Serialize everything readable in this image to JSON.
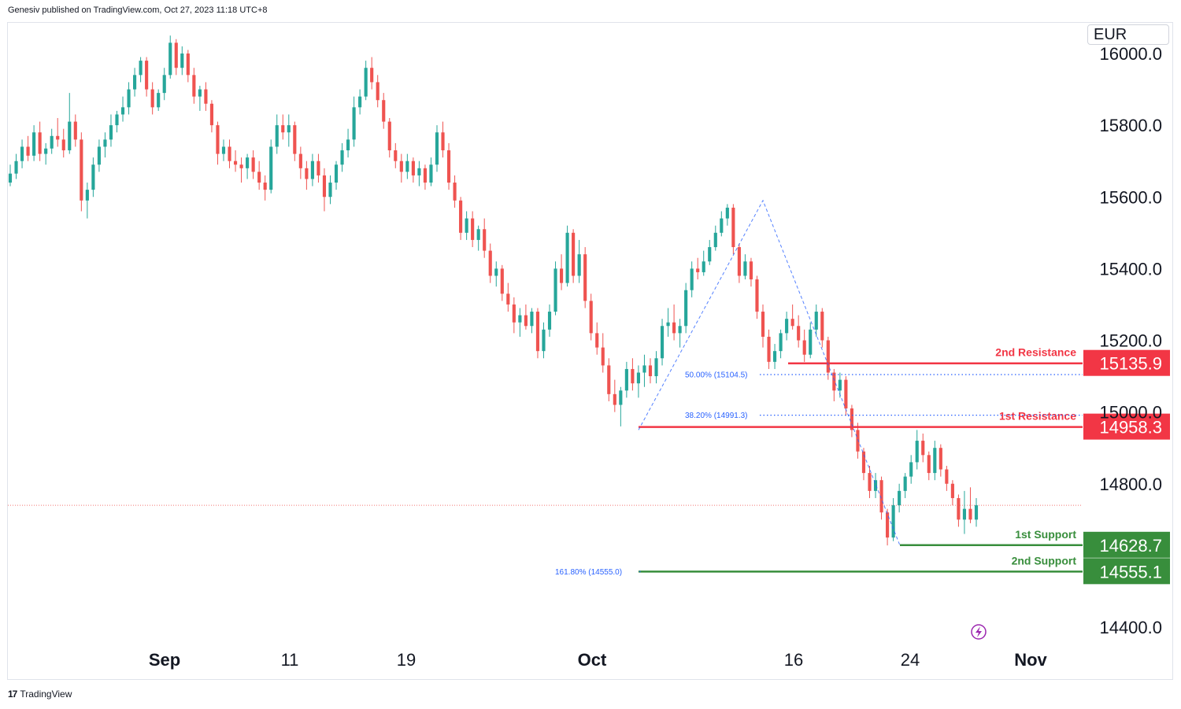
{
  "header": {
    "attribution": "Genesiv published on TradingView.com, Oct 27, 2023 11:18 UTC+8"
  },
  "currency": "EUR",
  "footer": {
    "brand": "TradingView",
    "logo_glyph": "17"
  },
  "colors": {
    "up": "#26a69a",
    "down": "#ef5350",
    "resistance": "#f23645",
    "support": "#388e3c",
    "fib": "#2962ff",
    "axis_text": "#131722"
  },
  "chart_data": {
    "type": "candlestick",
    "y_axis": {
      "ticks": [
        "16000.0",
        "15800.0",
        "15600.0",
        "15400.0",
        "15200.0",
        "15000.0",
        "14800.0",
        "14400.0"
      ],
      "range": [
        14350,
        16050
      ]
    },
    "x_axis": {
      "ticks": [
        "Sep",
        "11",
        "19",
        "Oct",
        "16",
        "24",
        "Nov"
      ]
    },
    "levels": [
      {
        "name": "2nd Resistance",
        "value": 15135.9,
        "label": "15135.9",
        "kind": "resistance"
      },
      {
        "name": "1st Resistance",
        "value": 14958.3,
        "label": "14958.3",
        "kind": "resistance"
      },
      {
        "name": "1st Support",
        "value": 14628.7,
        "label": "14628.7",
        "kind": "support"
      },
      {
        "name": "2nd Support",
        "value": 14555.1,
        "label": "14555.1",
        "kind": "support"
      }
    ],
    "fib_levels": [
      {
        "label": "50.00% (15104.5)",
        "value": 15104.5
      },
      {
        "label": "38.20% (14991.3)",
        "value": 14991.3
      },
      {
        "label": "161.80% (14555.0)",
        "value": 14555.0
      }
    ],
    "last_price": 14740,
    "candles_ohlc": [
      [
        15640,
        15690,
        15630,
        15665
      ],
      [
        15665,
        15720,
        15650,
        15700
      ],
      [
        15700,
        15760,
        15680,
        15740
      ],
      [
        15740,
        15770,
        15700,
        15715
      ],
      [
        15715,
        15800,
        15700,
        15780
      ],
      [
        15780,
        15810,
        15700,
        15720
      ],
      [
        15720,
        15750,
        15690,
        15735
      ],
      [
        15735,
        15790,
        15720,
        15770
      ],
      [
        15770,
        15820,
        15740,
        15760
      ],
      [
        15760,
        15790,
        15710,
        15730
      ],
      [
        15730,
        15890,
        15720,
        15810
      ],
      [
        15810,
        15830,
        15740,
        15760
      ],
      [
        15760,
        15780,
        15560,
        15590
      ],
      [
        15590,
        15640,
        15540,
        15620
      ],
      [
        15620,
        15710,
        15600,
        15690
      ],
      [
        15690,
        15760,
        15670,
        15740
      ],
      [
        15740,
        15780,
        15710,
        15760
      ],
      [
        15760,
        15830,
        15740,
        15800
      ],
      [
        15800,
        15840,
        15780,
        15830
      ],
      [
        15830,
        15880,
        15810,
        15850
      ],
      [
        15850,
        15920,
        15830,
        15900
      ],
      [
        15900,
        15960,
        15880,
        15940
      ],
      [
        15940,
        15990,
        15920,
        15980
      ],
      [
        15980,
        15990,
        15880,
        15900
      ],
      [
        15900,
        15920,
        15830,
        15850
      ],
      [
        15850,
        15900,
        15840,
        15890
      ],
      [
        15890,
        15960,
        15870,
        15940
      ],
      [
        15940,
        16050,
        15930,
        16030
      ],
      [
        16030,
        16040,
        15940,
        15960
      ],
      [
        15960,
        16020,
        15940,
        16000
      ],
      [
        16000,
        16010,
        15920,
        15940
      ],
      [
        15940,
        15960,
        15860,
        15880
      ],
      [
        15880,
        15910,
        15840,
        15900
      ],
      [
        15900,
        15920,
        15840,
        15860
      ],
      [
        15860,
        15870,
        15780,
        15800
      ],
      [
        15800,
        15810,
        15690,
        15720
      ],
      [
        15720,
        15760,
        15700,
        15740
      ],
      [
        15740,
        15760,
        15680,
        15700
      ],
      [
        15700,
        15730,
        15670,
        15690
      ],
      [
        15690,
        15710,
        15640,
        15680
      ],
      [
        15680,
        15720,
        15650,
        15710
      ],
      [
        15710,
        15730,
        15650,
        15670
      ],
      [
        15670,
        15700,
        15620,
        15640
      ],
      [
        15640,
        15660,
        15590,
        15620
      ],
      [
        15620,
        15760,
        15610,
        15740
      ],
      [
        15740,
        15830,
        15720,
        15800
      ],
      [
        15800,
        15830,
        15760,
        15780
      ],
      [
        15780,
        15830,
        15740,
        15800
      ],
      [
        15800,
        15810,
        15700,
        15720
      ],
      [
        15720,
        15740,
        15650,
        15680
      ],
      [
        15680,
        15700,
        15620,
        15650
      ],
      [
        15650,
        15720,
        15630,
        15700
      ],
      [
        15700,
        15720,
        15640,
        15660
      ],
      [
        15660,
        15680,
        15560,
        15600
      ],
      [
        15600,
        15660,
        15580,
        15640
      ],
      [
        15640,
        15700,
        15620,
        15690
      ],
      [
        15690,
        15750,
        15670,
        15730
      ],
      [
        15730,
        15790,
        15710,
        15760
      ],
      [
        15760,
        15880,
        15740,
        15850
      ],
      [
        15850,
        15900,
        15830,
        15880
      ],
      [
        15880,
        15980,
        15870,
        15960
      ],
      [
        15960,
        15990,
        15900,
        15920
      ],
      [
        15920,
        15940,
        15850,
        15870
      ],
      [
        15870,
        15890,
        15790,
        15810
      ],
      [
        15810,
        15820,
        15710,
        15730
      ],
      [
        15730,
        15750,
        15680,
        15700
      ],
      [
        15700,
        15720,
        15640,
        15670
      ],
      [
        15670,
        15720,
        15650,
        15700
      ],
      [
        15700,
        15710,
        15640,
        15660
      ],
      [
        15660,
        15700,
        15630,
        15680
      ],
      [
        15680,
        15690,
        15620,
        15640
      ],
      [
        15640,
        15710,
        15630,
        15690
      ],
      [
        15690,
        15800,
        15670,
        15780
      ],
      [
        15780,
        15810,
        15710,
        15730
      ],
      [
        15730,
        15750,
        15620,
        15640
      ],
      [
        15640,
        15660,
        15570,
        15590
      ],
      [
        15590,
        15600,
        15480,
        15500
      ],
      [
        15500,
        15560,
        15480,
        15540
      ],
      [
        15540,
        15560,
        15460,
        15480
      ],
      [
        15480,
        15520,
        15450,
        15510
      ],
      [
        15510,
        15540,
        15430,
        15450
      ],
      [
        15450,
        15470,
        15360,
        15380
      ],
      [
        15380,
        15420,
        15350,
        15400
      ],
      [
        15400,
        15410,
        15310,
        15330
      ],
      [
        15330,
        15360,
        15280,
        15300
      ],
      [
        15300,
        15320,
        15220,
        15250
      ],
      [
        15250,
        15290,
        15210,
        15270
      ],
      [
        15270,
        15300,
        15230,
        15240
      ],
      [
        15240,
        15290,
        15220,
        15280
      ],
      [
        15280,
        15290,
        15150,
        15170
      ],
      [
        15170,
        15250,
        15150,
        15230
      ],
      [
        15230,
        15300,
        15210,
        15280
      ],
      [
        15280,
        15420,
        15270,
        15400
      ],
      [
        15400,
        15440,
        15340,
        15360
      ],
      [
        15360,
        15520,
        15350,
        15500
      ],
      [
        15500,
        15510,
        15360,
        15380
      ],
      [
        15380,
        15480,
        15360,
        15440
      ],
      [
        15440,
        15460,
        15290,
        15310
      ],
      [
        15310,
        15330,
        15200,
        15220
      ],
      [
        15220,
        15250,
        15160,
        15180
      ],
      [
        15180,
        15220,
        15110,
        15130
      ],
      [
        15130,
        15150,
        15030,
        15050
      ],
      [
        15050,
        15090,
        15000,
        15020
      ],
      [
        15020,
        15070,
        14960,
        15060
      ],
      [
        15060,
        15140,
        15040,
        15120
      ],
      [
        15120,
        15150,
        15060,
        15080
      ],
      [
        15080,
        15130,
        15040,
        15110
      ],
      [
        15110,
        15160,
        15070,
        15130
      ],
      [
        15130,
        15150,
        15080,
        15100
      ],
      [
        15100,
        15170,
        15080,
        15150
      ],
      [
        15150,
        15260,
        15130,
        15240
      ],
      [
        15240,
        15290,
        15210,
        15250
      ],
      [
        15250,
        15300,
        15200,
        15220
      ],
      [
        15220,
        15260,
        15180,
        15240
      ],
      [
        15240,
        15360,
        15220,
        15340
      ],
      [
        15340,
        15420,
        15320,
        15400
      ],
      [
        15400,
        15430,
        15370,
        15390
      ],
      [
        15390,
        15450,
        15380,
        15420
      ],
      [
        15420,
        15480,
        15410,
        15460
      ],
      [
        15460,
        15520,
        15450,
        15500
      ],
      [
        15500,
        15560,
        15490,
        15540
      ],
      [
        15540,
        15580,
        15520,
        15570
      ],
      [
        15570,
        15580,
        15440,
        15460
      ],
      [
        15460,
        15470,
        15360,
        15380
      ],
      [
        15380,
        15440,
        15370,
        15420
      ],
      [
        15420,
        15430,
        15350,
        15370
      ],
      [
        15370,
        15380,
        15260,
        15280
      ],
      [
        15280,
        15300,
        15180,
        15210
      ],
      [
        15210,
        15230,
        15120,
        15140
      ],
      [
        15140,
        15190,
        15120,
        15170
      ],
      [
        15170,
        15230,
        15150,
        15220
      ],
      [
        15220,
        15280,
        15200,
        15260
      ],
      [
        15260,
        15300,
        15230,
        15240
      ],
      [
        15240,
        15270,
        15180,
        15200
      ],
      [
        15200,
        15230,
        15140,
        15160
      ],
      [
        15160,
        15250,
        15150,
        15230
      ],
      [
        15230,
        15300,
        15210,
        15280
      ],
      [
        15280,
        15290,
        15180,
        15200
      ],
      [
        15200,
        15210,
        15090,
        15110
      ],
      [
        15110,
        15120,
        15030,
        15060
      ],
      [
        15060,
        15110,
        15040,
        15090
      ],
      [
        15090,
        15100,
        14990,
        15010
      ],
      [
        15010,
        15020,
        14930,
        14950
      ],
      [
        14950,
        14970,
        14870,
        14890
      ],
      [
        14890,
        14900,
        14810,
        14830
      ],
      [
        14830,
        14850,
        14760,
        14780
      ],
      [
        14780,
        14830,
        14760,
        14810
      ],
      [
        14810,
        14820,
        14700,
        14720
      ],
      [
        14720,
        14730,
        14628,
        14650
      ],
      [
        14650,
        14760,
        14640,
        14740
      ],
      [
        14740,
        14800,
        14720,
        14780
      ],
      [
        14780,
        14830,
        14760,
        14820
      ],
      [
        14820,
        14880,
        14800,
        14860
      ],
      [
        14860,
        14950,
        14840,
        14920
      ],
      [
        14920,
        14940,
        14860,
        14880
      ],
      [
        14880,
        14890,
        14810,
        14830
      ],
      [
        14830,
        14920,
        14810,
        14900
      ],
      [
        14900,
        14910,
        14820,
        14840
      ],
      [
        14840,
        14850,
        14780,
        14800
      ],
      [
        14800,
        14810,
        14740,
        14760
      ],
      [
        14760,
        14770,
        14680,
        14700
      ],
      [
        14700,
        14780,
        14660,
        14730
      ],
      [
        14730,
        14790,
        14690,
        14700
      ],
      [
        14700,
        14760,
        14680,
        14740
      ]
    ],
    "dates_per_candle_note": "",
    "candles_start_date": "",
    "watermark_icon": "lightning-icon"
  }
}
